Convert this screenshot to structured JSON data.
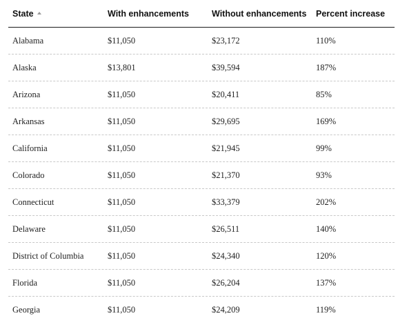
{
  "table": {
    "headers": {
      "state": "State",
      "with": "With enhancements",
      "without": "Without enhancements",
      "pct": "Percent increase"
    },
    "sort": {
      "column": "state",
      "direction": "ascending",
      "icon": "sort-ascending-icon"
    },
    "rows": [
      {
        "state": "Alabama",
        "with": "$11,050",
        "without": "$23,172",
        "pct": "110%"
      },
      {
        "state": "Alaska",
        "with": "$13,801",
        "without": "$39,594",
        "pct": "187%"
      },
      {
        "state": "Arizona",
        "with": "$11,050",
        "without": "$20,411",
        "pct": "85%"
      },
      {
        "state": "Arkansas",
        "with": "$11,050",
        "without": "$29,695",
        "pct": "169%"
      },
      {
        "state": "California",
        "with": "$11,050",
        "without": "$21,945",
        "pct": "99%"
      },
      {
        "state": "Colorado",
        "with": "$11,050",
        "without": "$21,370",
        "pct": "93%"
      },
      {
        "state": "Connecticut",
        "with": "$11,050",
        "without": "$33,379",
        "pct": "202%"
      },
      {
        "state": "Delaware",
        "with": "$11,050",
        "without": "$26,511",
        "pct": "140%"
      },
      {
        "state": "District of Columbia",
        "with": "$11,050",
        "without": "$24,340",
        "pct": "120%"
      },
      {
        "state": "Florida",
        "with": "$11,050",
        "without": "$26,204",
        "pct": "137%"
      },
      {
        "state": "Georgia",
        "with": "$11,050",
        "without": "$24,209",
        "pct": "119%"
      }
    ]
  }
}
